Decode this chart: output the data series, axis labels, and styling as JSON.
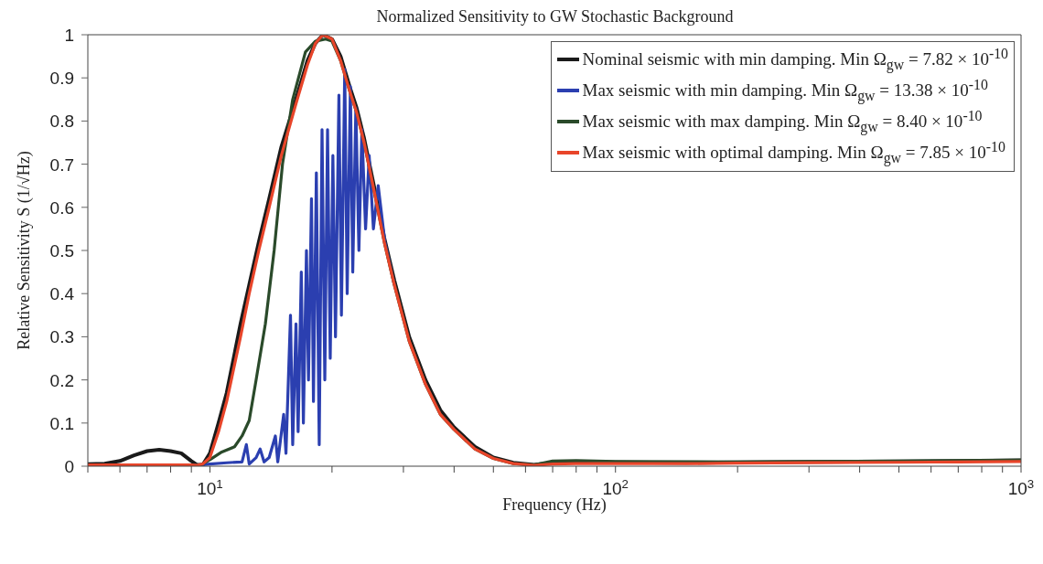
{
  "chart_data": {
    "type": "line",
    "title": "Normalized Sensitivity to GW Stochastic Background",
    "xlabel": "Frequency (Hz)",
    "ylabel": "Relative Sensitivity S (1/√Hz)",
    "log": "x",
    "grid": false,
    "legend": "top right",
    "marker": "none",
    "line_style": "solid",
    "xlim": [
      5,
      1000
    ],
    "xticks": [
      {
        "value": 5,
        "label": null
      },
      {
        "value": 6,
        "label": null
      },
      {
        "value": 7,
        "label": null
      },
      {
        "value": 8,
        "label": null
      },
      {
        "value": 9,
        "label": null
      },
      {
        "value": 10,
        "label": "10$^{1}$"
      },
      {
        "value": 20,
        "label": null
      },
      {
        "value": 30,
        "label": null
      },
      {
        "value": 40,
        "label": null
      },
      {
        "value": 50,
        "label": null
      },
      {
        "value": 60,
        "label": null
      },
      {
        "value": 70,
        "label": null
      },
      {
        "value": 80,
        "label": null
      },
      {
        "value": 90,
        "label": null
      },
      {
        "value": 100,
        "label": "10$^{2}$"
      },
      {
        "value": 200,
        "label": null
      },
      {
        "value": 300,
        "label": null
      },
      {
        "value": 400,
        "label": null
      },
      {
        "value": 500,
        "label": null
      },
      {
        "value": 600,
        "label": null
      },
      {
        "value": 700,
        "label": null
      },
      {
        "value": 800,
        "label": null
      },
      {
        "value": 900,
        "label": null
      },
      {
        "value": 1000,
        "label": "10$^{3}$"
      }
    ],
    "ylim": [
      0,
      1
    ],
    "yticks": [
      0,
      0.1,
      0.2,
      0.3,
      0.4,
      0.5,
      0.6,
      0.7,
      0.8,
      0.9,
      1
    ],
    "series": [
      {
        "name": "Nominal seismic with min damping. Min Ω$_{gw}$ = 7.82 × 10$^{-10}$",
        "color": "#1a1a1a",
        "x": [
          5,
          5.5,
          6,
          6.5,
          7,
          7.5,
          8,
          8.5,
          9,
          9.3,
          9.6,
          10,
          10.5,
          11,
          11.9,
          12.5,
          13.2,
          14,
          15,
          16.3,
          17.4,
          18.2,
          19,
          20,
          21,
          22.1,
          23,
          24,
          25.5,
          26.9,
          28.5,
          31,
          34,
          37,
          40,
          45,
          50,
          56,
          63,
          70,
          80,
          100,
          150,
          200,
          300,
          500,
          700,
          1000
        ],
        "values": [
          0.005,
          0.006,
          0.012,
          0.025,
          0.035,
          0.038,
          0.035,
          0.03,
          0.012,
          0.003,
          0.003,
          0.03,
          0.1,
          0.17,
          0.33,
          0.42,
          0.52,
          0.62,
          0.74,
          0.85,
          0.94,
          0.98,
          1.0,
          0.99,
          0.95,
          0.88,
          0.83,
          0.76,
          0.64,
          0.53,
          0.43,
          0.3,
          0.2,
          0.13,
          0.09,
          0.045,
          0.02,
          0.008,
          0.003,
          0.008,
          0.01,
          0.009,
          0.008,
          0.009,
          0.01,
          0.011,
          0.012,
          0.014
        ]
      },
      {
        "name": "Max seismic with min damping. Min Ω$_{gw}$ = 13.38 × 10$^{-10}$",
        "color": "#2b3fb0",
        "x": [
          5,
          9.5,
          10,
          11,
          12,
          12.3,
          12.5,
          13,
          13.3,
          13.6,
          14,
          14.5,
          14.7,
          15.2,
          15.4,
          15.8,
          16,
          16.3,
          16.5,
          16.8,
          17,
          17.3,
          17.5,
          17.8,
          18,
          18.3,
          18.6,
          18.9,
          19.2,
          19.5,
          19.8,
          20.1,
          20.4,
          20.8,
          21.1,
          21.5,
          21.8,
          22.2,
          22.5,
          22.9,
          23.3,
          23.7,
          24.2,
          24.7,
          25.3,
          26,
          27,
          28.5
        ],
        "values": [
          0.003,
          0.003,
          0.005,
          0.008,
          0.01,
          0.05,
          0.005,
          0.02,
          0.04,
          0.01,
          0.02,
          0.07,
          0.01,
          0.12,
          0.03,
          0.35,
          0.05,
          0.33,
          0.08,
          0.45,
          0.1,
          0.5,
          0.2,
          0.62,
          0.15,
          0.68,
          0.05,
          0.78,
          0.2,
          0.78,
          0.25,
          0.72,
          0.3,
          0.86,
          0.35,
          0.92,
          0.4,
          0.88,
          0.45,
          0.83,
          0.5,
          0.78,
          0.55,
          0.72,
          0.55,
          0.65,
          0.52,
          0.42
        ]
      },
      {
        "name": "Max seismic with max damping. Min Ω$_{gw}$ = 8.40 × 10$^{-10}$",
        "color": "#2a4a2a",
        "x": [
          5,
          8,
          9,
          9.5,
          10,
          10.7,
          11.5,
          12,
          12.5,
          13,
          13.7,
          14.4,
          15.1,
          16,
          17.2,
          18.2,
          19.3,
          20,
          21,
          22.1,
          23,
          24,
          25.5,
          26.9,
          28.5,
          31,
          34,
          37,
          40,
          45,
          50,
          56,
          63,
          70,
          80,
          100,
          200,
          500,
          1000
        ],
        "values": [
          0.002,
          0.002,
          0.002,
          0.003,
          0.015,
          0.033,
          0.045,
          0.07,
          0.106,
          0.2,
          0.33,
          0.5,
          0.7,
          0.85,
          0.96,
          0.985,
          0.99,
          0.985,
          0.94,
          0.87,
          0.82,
          0.75,
          0.63,
          0.52,
          0.42,
          0.29,
          0.19,
          0.12,
          0.085,
          0.04,
          0.018,
          0.006,
          0.003,
          0.012,
          0.013,
          0.011,
          0.01,
          0.012,
          0.014
        ]
      },
      {
        "name": "Max seismic with optimal damping. Min Ω$_{gw}$ = 7.85 × 10$^{-10}$",
        "color": "#e8452a",
        "x": [
          5,
          5.5,
          6,
          6.5,
          7,
          7.5,
          8,
          8.5,
          9,
          9.3,
          9.6,
          10,
          10.5,
          11,
          11.9,
          12.5,
          13.2,
          14,
          15,
          16.3,
          17.4,
          18.2,
          19,
          20,
          21,
          22.1,
          23,
          24,
          25.5,
          26.9,
          28.5,
          31,
          34,
          37,
          40,
          45,
          50,
          56,
          63,
          70,
          80,
          100,
          150,
          200,
          300,
          500,
          700,
          1000
        ],
        "values": [
          0.003,
          0.003,
          0.003,
          0.003,
          0.003,
          0.003,
          0.003,
          0.003,
          0.003,
          0.002,
          0.005,
          0.02,
          0.08,
          0.15,
          0.3,
          0.4,
          0.5,
          0.6,
          0.72,
          0.84,
          0.93,
          0.98,
          1.0,
          0.99,
          0.94,
          0.87,
          0.82,
          0.75,
          0.63,
          0.52,
          0.42,
          0.29,
          0.19,
          0.12,
          0.085,
          0.04,
          0.018,
          0.006,
          0.002,
          0.005,
          0.006,
          0.006,
          0.006,
          0.007,
          0.008,
          0.009,
          0.01,
          0.011
        ]
      }
    ]
  }
}
